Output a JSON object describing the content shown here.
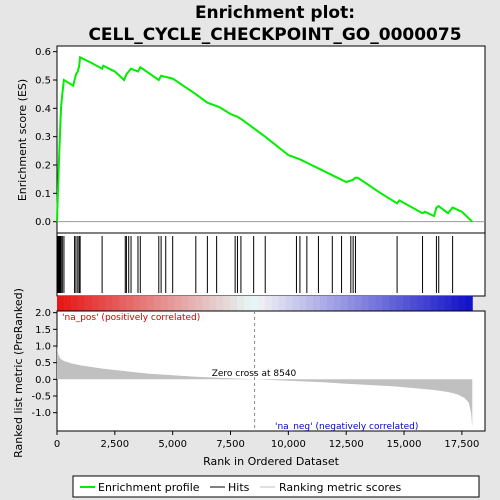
{
  "chart_data": {
    "type": "line",
    "title_line1": "Enrichment plot:",
    "title_line2": "CELL_CYCLE_CHECKPOINT_GO_0000075",
    "xlabel": "Rank in Ordered Dataset",
    "ylabel_top": "Enrichment score (ES)",
    "ylabel_bottom": "Ranked list metric (PreRanked)",
    "xlim": [
      0,
      18500
    ],
    "es_ylim": [
      -0.04,
      0.62
    ],
    "metric_ylim": [
      -1.55,
      2.05
    ],
    "x_ticks": [
      0,
      2500,
      5000,
      7500,
      10000,
      12500,
      15000,
      17500
    ],
    "x_tick_labels": [
      "0",
      "2,500",
      "5,000",
      "7,500",
      "10,000",
      "12,500",
      "15,000",
      "17,500"
    ],
    "es_ticks": [
      0.0,
      0.1,
      0.2,
      0.3,
      0.4,
      0.5,
      0.6
    ],
    "es_tick_labels": [
      "0.0",
      "0.1",
      "0.2",
      "0.3",
      "0.4",
      "0.5",
      "0.6"
    ],
    "metric_ticks": [
      2.0,
      1.5,
      1.0,
      0.5,
      0.0,
      -0.5,
      -1.0
    ],
    "metric_tick_labels": [
      "2.0",
      "1.5",
      "1.0",
      "0.5",
      "0.0",
      "-0.5",
      "-1.0"
    ],
    "es_curve": {
      "x": [
        0,
        30,
        60,
        90,
        120,
        150,
        180,
        230,
        300,
        500,
        700,
        760,
        820,
        900,
        960,
        1000,
        1500,
        1950,
        2000,
        2500,
        2900,
        2950,
        3000,
        3100,
        3200,
        3500,
        3600,
        4400,
        4500,
        5000,
        6000,
        6500,
        7000,
        7500,
        7800,
        8000,
        8500,
        9000,
        10000,
        10500,
        11000,
        11500,
        12000,
        12500,
        12700,
        12800,
        12900,
        13000,
        14000,
        14700,
        14800,
        15800,
        15900,
        16300,
        16400,
        16500,
        16900,
        17100,
        17500,
        17950
      ],
      "y": [
        0.0,
        0.08,
        0.15,
        0.23,
        0.29,
        0.36,
        0.41,
        0.45,
        0.5,
        0.49,
        0.48,
        0.5,
        0.52,
        0.53,
        0.55,
        0.58,
        0.56,
        0.54,
        0.55,
        0.53,
        0.5,
        0.51,
        0.52,
        0.53,
        0.54,
        0.53,
        0.545,
        0.5,
        0.515,
        0.505,
        0.45,
        0.42,
        0.405,
        0.38,
        0.37,
        0.36,
        0.33,
        0.3,
        0.235,
        0.22,
        0.2,
        0.18,
        0.16,
        0.14,
        0.145,
        0.148,
        0.155,
        0.155,
        0.1,
        0.065,
        0.075,
        0.03,
        0.035,
        0.02,
        0.05,
        0.055,
        0.03,
        0.05,
        0.035,
        0.0
      ]
    },
    "hits": [
      30,
      60,
      90,
      120,
      150,
      180,
      230,
      300,
      760,
      820,
      900,
      960,
      1000,
      1950,
      2950,
      3000,
      3100,
      3200,
      3500,
      3600,
      4400,
      4500,
      4700,
      5000,
      6000,
      6500,
      6900,
      7700,
      7800,
      7950,
      8500,
      9000,
      10350,
      10500,
      10800,
      11300,
      11900,
      12300,
      12700,
      12800,
      12900,
      14700,
      15800,
      16400,
      16500,
      17100
    ],
    "metric": {
      "x": [
        0,
        50,
        150,
        300,
        600,
        1000,
        2000,
        3000,
        4000,
        5000,
        6000,
        7000,
        8000,
        8540,
        9500,
        10500,
        11500,
        12500,
        13500,
        14500,
        15500,
        16300,
        16900,
        17300,
        17600,
        17800,
        17900,
        17950
      ],
      "y": [
        1.0,
        0.75,
        0.62,
        0.55,
        0.48,
        0.42,
        0.32,
        0.24,
        0.17,
        0.12,
        0.08,
        0.05,
        0.02,
        0.0,
        -0.03,
        -0.06,
        -0.09,
        -0.13,
        -0.17,
        -0.21,
        -0.27,
        -0.32,
        -0.38,
        -0.45,
        -0.55,
        -0.7,
        -1.0,
        -1.45
      ]
    },
    "zero_cross_x": 8540,
    "zero_cross_label": "Zero cross at 8540",
    "pos_label": "'na_pos' (positively correlated)",
    "neg_label": "'na_neg' (negatively correlated)",
    "legend": [
      "Enrichment profile",
      "Hits",
      "Ranking metric scores"
    ],
    "colors": {
      "es_line": "#00ee00",
      "hits": "#000000",
      "metric_fill": "#c0c0c0",
      "pos_annot": "#cc0000",
      "neg_annot": "#0000cc",
      "bg_panel": "#e6e6e6",
      "red": "#ee0000",
      "blue": "#0000cc"
    }
  }
}
